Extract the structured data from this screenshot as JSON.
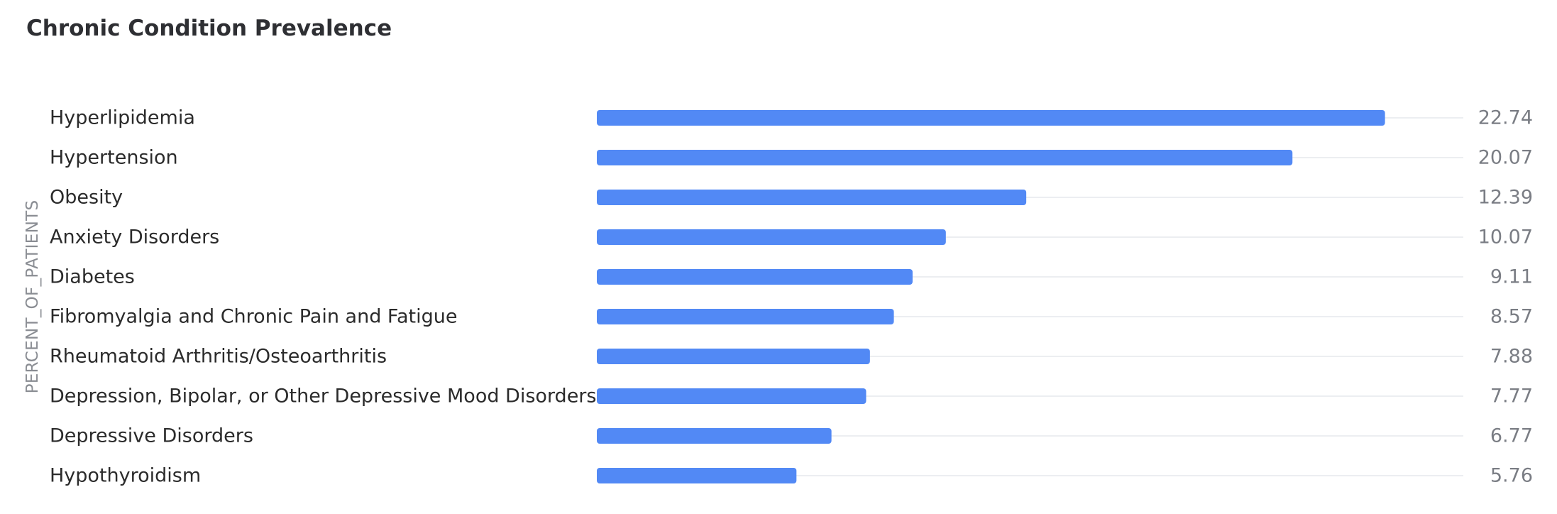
{
  "chart_data": {
    "type": "bar",
    "orientation": "horizontal",
    "title": "Chronic Condition Prevalence",
    "ylabel": "PERCENT_OF_PATIENTS",
    "xlabel": "",
    "categories": [
      "Hyperlipidemia",
      "Hypertension",
      "Obesity",
      "Anxiety Disorders",
      "Diabetes",
      "Fibromyalgia and Chronic Pain and Fatigue",
      "Rheumatoid Arthritis/Osteoarthritis",
      "Depression, Bipolar, or Other Depressive Mood Disorders",
      "Depressive Disorders",
      "Hypothyroidism"
    ],
    "values": [
      22.74,
      20.07,
      12.39,
      10.07,
      9.11,
      8.57,
      7.88,
      7.77,
      6.77,
      5.76
    ],
    "value_labels": [
      "22.74",
      "20.07",
      "12.39",
      "10.07",
      "9.11",
      "8.57",
      "7.88",
      "7.77",
      "6.77",
      "5.76"
    ],
    "xlim": [
      0,
      25
    ],
    "grid": true,
    "legend": "none",
    "colors": {
      "bar": "#5289f5",
      "track": "#eceef1",
      "category_text": "#2b2b2b",
      "value_text": "#7a7d84"
    }
  }
}
